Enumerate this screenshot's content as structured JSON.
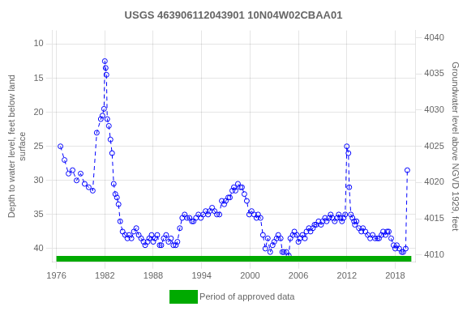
{
  "chart_data": {
    "type": "line",
    "title": "USGS 463906112043901 10N04W02CBAA01",
    "ylabel": "Depth to water level, feet below land\nsurface",
    "y2label": "Groundwater level above NGVD 1929, feet",
    "x": [
      1976.5,
      1977.0,
      1977.5,
      1978.0,
      1978.5,
      1979.0,
      1979.5,
      1980.0,
      1980.5,
      1981.0,
      1981.5,
      1981.7,
      1981.9,
      1982.0,
      1982.1,
      1982.2,
      1982.3,
      1982.5,
      1982.7,
      1982.9,
      1983.1,
      1983.3,
      1983.5,
      1983.7,
      1983.9,
      1984.2,
      1984.5,
      1984.8,
      1985.0,
      1985.3,
      1985.6,
      1985.9,
      1986.2,
      1986.5,
      1986.8,
      1987.0,
      1987.3,
      1987.5,
      1987.8,
      1988.0,
      1988.2,
      1988.5,
      1988.8,
      1989.0,
      1989.3,
      1989.6,
      1989.9,
      1990.2,
      1990.5,
      1990.8,
      1991.0,
      1991.3,
      1991.6,
      1991.9,
      1992.2,
      1992.5,
      1992.8,
      1993.0,
      1993.3,
      1993.6,
      1993.9,
      1994.2,
      1994.5,
      1994.8,
      1995.0,
      1995.3,
      1995.6,
      1995.9,
      1996.2,
      1996.5,
      1996.8,
      1997.0,
      1997.3,
      1997.5,
      1997.8,
      1998.0,
      1998.2,
      1998.5,
      1998.8,
      1999.0,
      1999.3,
      1999.6,
      1999.9,
      2000.2,
      2000.5,
      2000.8,
      2001.0,
      2001.3,
      2001.6,
      2001.9,
      2002.2,
      2002.5,
      2002.8,
      2003.0,
      2003.3,
      2003.5,
      2003.8,
      2004.0,
      2004.2,
      2004.5,
      2004.8,
      2005.0,
      2005.3,
      2005.5,
      2005.8,
      2006.0,
      2006.2,
      2006.5,
      2006.8,
      2007.0,
      2007.3,
      2007.5,
      2007.8,
      2008.0,
      2008.2,
      2008.5,
      2008.8,
      2009.0,
      2009.3,
      2009.5,
      2009.8,
      2010.0,
      2010.2,
      2010.5,
      2010.8,
      2011.0,
      2011.2,
      2011.4,
      2011.6,
      2011.8,
      2012.0,
      2012.2,
      2012.3,
      2012.5,
      2012.7,
      2012.9,
      2013.0,
      2013.2,
      2013.5,
      2013.8,
      2014.0,
      2014.3,
      2014.6,
      2014.9,
      2015.2,
      2015.5,
      2015.8,
      2016.0,
      2016.3,
      2016.5,
      2016.8,
      2017.0,
      2017.2,
      2017.5,
      2017.8,
      2018.0,
      2018.2,
      2018.5,
      2018.8,
      2019.0,
      2019.3,
      2019.5
    ],
    "series": [
      {
        "color": "blue",
        "marker": "circle",
        "line_style": "dashed",
        "values": [
          25.0,
          27.0,
          29.0,
          28.5,
          30.0,
          29.0,
          30.5,
          31.0,
          31.5,
          23.0,
          21.0,
          20.5,
          19.5,
          12.5,
          13.5,
          14.5,
          21.0,
          22.0,
          24.0,
          26.0,
          30.5,
          32.0,
          32.5,
          33.5,
          36.0,
          37.5,
          38.0,
          38.5,
          38.0,
          38.5,
          37.5,
          37.0,
          38.0,
          38.5,
          39.0,
          39.5,
          39.0,
          38.5,
          38.0,
          39.0,
          38.5,
          38.0,
          39.5,
          39.5,
          38.5,
          38.0,
          39.0,
          38.5,
          39.5,
          39.5,
          39.0,
          37.0,
          35.5,
          35.0,
          35.5,
          35.5,
          36.0,
          36.0,
          35.5,
          35.0,
          35.5,
          35.0,
          34.5,
          35.0,
          34.5,
          34.0,
          34.5,
          35.0,
          35.0,
          33.0,
          33.5,
          33.0,
          32.5,
          32.5,
          31.5,
          31.0,
          31.5,
          30.5,
          31.0,
          31.0,
          32.0,
          33.0,
          35.0,
          34.5,
          35.0,
          35.5,
          35.0,
          35.5,
          38.0,
          40.0,
          38.5,
          40.5,
          39.5,
          39.0,
          38.5,
          38.0,
          38.5,
          40.5,
          40.5,
          40.5,
          41.0,
          38.5,
          38.0,
          37.5,
          38.0,
          39.0,
          38.5,
          38.0,
          38.5,
          37.5,
          37.0,
          37.5,
          37.0,
          36.5,
          36.5,
          36.0,
          36.5,
          36.0,
          35.5,
          36.0,
          35.5,
          35.0,
          35.5,
          36.0,
          35.5,
          35.0,
          35.5,
          36.0,
          35.5,
          35.0,
          25.0,
          26.0,
          31.0,
          35.0,
          35.5,
          36.0,
          36.5,
          36.0,
          37.0,
          37.5,
          37.0,
          37.5,
          38.0,
          38.5,
          38.0,
          38.5,
          38.5,
          38.5,
          38.0,
          37.5,
          38.0,
          37.5,
          37.5,
          38.5,
          39.5,
          40.0,
          39.5,
          40.0,
          40.5,
          40.5,
          40.0,
          28.5
        ]
      },
      {
        "name": "Period of approved data",
        "type": "bar",
        "color": "#00aa00",
        "y": 41.5,
        "x_start": 1976,
        "x_end": 2020
      }
    ],
    "xlim": [
      1975.5,
      2020.5
    ],
    "xticks": [
      1976,
      1982,
      1988,
      1994,
      2000,
      2006,
      2012,
      2018
    ],
    "ylim": [
      42,
      8
    ],
    "yticks": [
      10,
      15,
      20,
      25,
      30,
      35,
      40
    ],
    "y2lim": [
      4009,
      4041
    ],
    "y2ticks": [
      4010,
      4015,
      4020,
      4025,
      4030,
      4035,
      4040
    ],
    "grid": true,
    "legend": "bottom"
  }
}
